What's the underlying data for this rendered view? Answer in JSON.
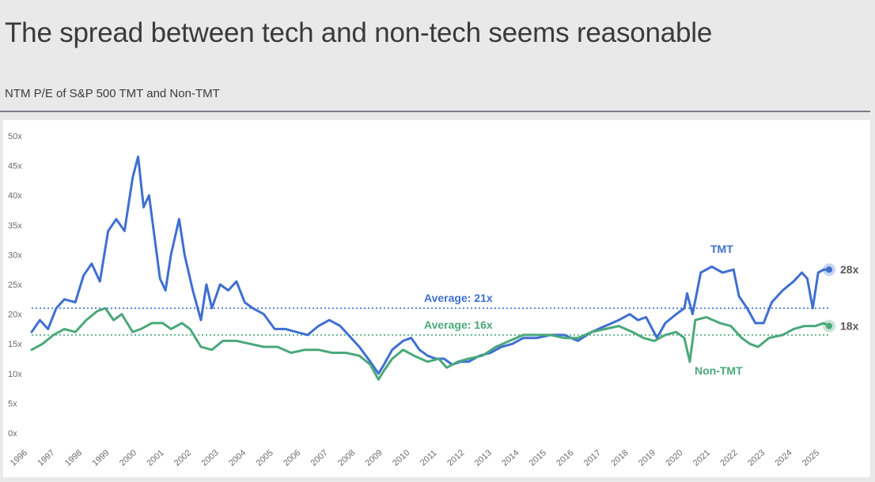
{
  "header": {
    "title": "The spread between tech and non-tech seems reasonable",
    "subtitle": "NTM P/E of S&P 500 TMT and Non-TMT"
  },
  "chart_data": {
    "type": "line",
    "title": "NTM P/E of S&P 500 TMT and Non-TMT",
    "ylim": [
      0,
      50
    ],
    "xlim": [
      1996,
      2025.2
    ],
    "y_ticks": [
      0,
      5,
      10,
      15,
      20,
      25,
      30,
      35,
      40,
      45,
      50
    ],
    "y_tick_labels": [
      "0x",
      "5x",
      "10x",
      "15x",
      "20x",
      "25x",
      "30x",
      "35x",
      "40x",
      "45x",
      "50x"
    ],
    "x_tick_labels": [
      "1996",
      "1997",
      "1998",
      "1999",
      "2000",
      "2001",
      "2002",
      "2003",
      "2004",
      "2005",
      "2006",
      "2007",
      "2008",
      "2009",
      "2010",
      "2011",
      "2012",
      "2013",
      "2014",
      "2015",
      "2016",
      "2017",
      "2018",
      "2019",
      "2020",
      "2021",
      "2022",
      "2023",
      "2024",
      "2025"
    ],
    "series": [
      {
        "name": "TMT",
        "color": "#3f6fd1",
        "points": [
          [
            1996.0,
            17.0
          ],
          [
            1996.3,
            19.0
          ],
          [
            1996.6,
            17.5
          ],
          [
            1996.9,
            21.0
          ],
          [
            1997.2,
            22.5
          ],
          [
            1997.6,
            22.0
          ],
          [
            1997.9,
            26.5
          ],
          [
            1998.2,
            28.5
          ],
          [
            1998.5,
            25.5
          ],
          [
            1998.8,
            34.0
          ],
          [
            1999.1,
            36.0
          ],
          [
            1999.4,
            34.0
          ],
          [
            1999.7,
            43.0
          ],
          [
            1999.9,
            46.5
          ],
          [
            2000.1,
            38.0
          ],
          [
            2000.3,
            40.0
          ],
          [
            2000.5,
            33.0
          ],
          [
            2000.7,
            26.0
          ],
          [
            2000.9,
            24.0
          ],
          [
            2001.1,
            30.0
          ],
          [
            2001.4,
            36.0
          ],
          [
            2001.6,
            30.0
          ],
          [
            2001.9,
            24.0
          ],
          [
            2002.2,
            19.0
          ],
          [
            2002.4,
            25.0
          ],
          [
            2002.6,
            21.0
          ],
          [
            2002.9,
            25.0
          ],
          [
            2003.2,
            24.0
          ],
          [
            2003.5,
            25.5
          ],
          [
            2003.8,
            22.0
          ],
          [
            2004.1,
            21.0
          ],
          [
            2004.5,
            20.0
          ],
          [
            2004.9,
            17.5
          ],
          [
            2005.3,
            17.5
          ],
          [
            2005.7,
            17.0
          ],
          [
            2006.1,
            16.5
          ],
          [
            2006.5,
            18.0
          ],
          [
            2006.9,
            19.0
          ],
          [
            2007.3,
            18.0
          ],
          [
            2007.7,
            16.0
          ],
          [
            2008.0,
            14.5
          ],
          [
            2008.4,
            12.0
          ],
          [
            2008.7,
            10.0
          ],
          [
            2008.9,
            11.5
          ],
          [
            2009.2,
            14.0
          ],
          [
            2009.6,
            15.5
          ],
          [
            2009.9,
            16.0
          ],
          [
            2010.2,
            14.0
          ],
          [
            2010.5,
            13.0
          ],
          [
            2010.8,
            12.5
          ],
          [
            2011.1,
            12.5
          ],
          [
            2011.4,
            11.5
          ],
          [
            2011.7,
            12.0
          ],
          [
            2012.0,
            12.0
          ],
          [
            2012.4,
            13.0
          ],
          [
            2012.8,
            13.5
          ],
          [
            2013.2,
            14.5
          ],
          [
            2013.6,
            15.0
          ],
          [
            2014.0,
            16.0
          ],
          [
            2014.5,
            16.0
          ],
          [
            2015.0,
            16.5
          ],
          [
            2015.5,
            16.5
          ],
          [
            2016.0,
            15.5
          ],
          [
            2016.5,
            17.0
          ],
          [
            2017.0,
            18.0
          ],
          [
            2017.5,
            19.0
          ],
          [
            2017.9,
            20.0
          ],
          [
            2018.2,
            19.0
          ],
          [
            2018.5,
            19.5
          ],
          [
            2018.9,
            16.0
          ],
          [
            2019.2,
            18.5
          ],
          [
            2019.6,
            20.0
          ],
          [
            2019.9,
            21.0
          ],
          [
            2020.0,
            23.5
          ],
          [
            2020.2,
            20.0
          ],
          [
            2020.5,
            27.0
          ],
          [
            2020.9,
            28.0
          ],
          [
            2021.3,
            27.0
          ],
          [
            2021.7,
            27.5
          ],
          [
            2021.9,
            23.0
          ],
          [
            2022.2,
            21.0
          ],
          [
            2022.5,
            18.5
          ],
          [
            2022.8,
            18.5
          ],
          [
            2023.1,
            22.0
          ],
          [
            2023.5,
            24.0
          ],
          [
            2023.9,
            25.5
          ],
          [
            2024.2,
            27.0
          ],
          [
            2024.4,
            26.0
          ],
          [
            2024.6,
            21.0
          ],
          [
            2024.8,
            27.0
          ],
          [
            2025.0,
            27.5
          ],
          [
            2025.2,
            27.5
          ]
        ]
      },
      {
        "name": "Non-TMT",
        "color": "#4aa87a",
        "points": [
          [
            1996.0,
            14.0
          ],
          [
            1996.4,
            15.0
          ],
          [
            1996.8,
            16.5
          ],
          [
            1997.2,
            17.5
          ],
          [
            1997.6,
            17.0
          ],
          [
            1998.0,
            19.0
          ],
          [
            1998.4,
            20.5
          ],
          [
            1998.7,
            21.0
          ],
          [
            1999.0,
            19.0
          ],
          [
            1999.3,
            20.0
          ],
          [
            1999.7,
            17.0
          ],
          [
            2000.0,
            17.5
          ],
          [
            2000.4,
            18.5
          ],
          [
            2000.8,
            18.5
          ],
          [
            2001.1,
            17.5
          ],
          [
            2001.5,
            18.5
          ],
          [
            2001.8,
            17.5
          ],
          [
            2002.2,
            14.5
          ],
          [
            2002.6,
            14.0
          ],
          [
            2003.0,
            15.5
          ],
          [
            2003.5,
            15.5
          ],
          [
            2004.0,
            15.0
          ],
          [
            2004.5,
            14.5
          ],
          [
            2005.0,
            14.5
          ],
          [
            2005.5,
            13.5
          ],
          [
            2006.0,
            14.0
          ],
          [
            2006.5,
            14.0
          ],
          [
            2007.0,
            13.5
          ],
          [
            2007.5,
            13.5
          ],
          [
            2008.0,
            13.0
          ],
          [
            2008.4,
            11.5
          ],
          [
            2008.7,
            9.0
          ],
          [
            2008.9,
            10.5
          ],
          [
            2009.2,
            12.5
          ],
          [
            2009.6,
            14.0
          ],
          [
            2010.0,
            13.0
          ],
          [
            2010.5,
            12.0
          ],
          [
            2010.9,
            12.5
          ],
          [
            2011.2,
            11.0
          ],
          [
            2011.6,
            12.0
          ],
          [
            2012.0,
            12.5
          ],
          [
            2012.5,
            13.0
          ],
          [
            2013.0,
            14.5
          ],
          [
            2013.5,
            15.5
          ],
          [
            2014.0,
            16.5
          ],
          [
            2014.5,
            16.5
          ],
          [
            2015.0,
            16.5
          ],
          [
            2015.5,
            16.0
          ],
          [
            2016.0,
            16.0
          ],
          [
            2016.5,
            17.0
          ],
          [
            2017.0,
            17.5
          ],
          [
            2017.5,
            18.0
          ],
          [
            2018.0,
            17.0
          ],
          [
            2018.4,
            16.0
          ],
          [
            2018.8,
            15.5
          ],
          [
            2019.2,
            16.5
          ],
          [
            2019.6,
            17.0
          ],
          [
            2019.9,
            16.0
          ],
          [
            2020.1,
            12.0
          ],
          [
            2020.3,
            19.0
          ],
          [
            2020.7,
            19.5
          ],
          [
            2021.2,
            18.5
          ],
          [
            2021.6,
            18.0
          ],
          [
            2022.0,
            16.0
          ],
          [
            2022.3,
            15.0
          ],
          [
            2022.6,
            14.5
          ],
          [
            2023.0,
            16.0
          ],
          [
            2023.5,
            16.5
          ],
          [
            2023.9,
            17.5
          ],
          [
            2024.3,
            18.0
          ],
          [
            2024.7,
            18.0
          ],
          [
            2025.0,
            18.5
          ],
          [
            2025.2,
            18.0
          ]
        ]
      }
    ],
    "annotations": [
      {
        "text": "Average: 21x",
        "value": 21,
        "series": "TMT"
      },
      {
        "text": "Average: 16x",
        "value": 16.5,
        "series": "Non-TMT"
      },
      {
        "text": "TMT",
        "series": "TMT"
      },
      {
        "text": "Non-TMT",
        "series": "Non-TMT"
      },
      {
        "text": "28x",
        "value": 27.5,
        "series": "TMT"
      },
      {
        "text": "18x",
        "value": 18,
        "series": "Non-TMT"
      }
    ]
  }
}
